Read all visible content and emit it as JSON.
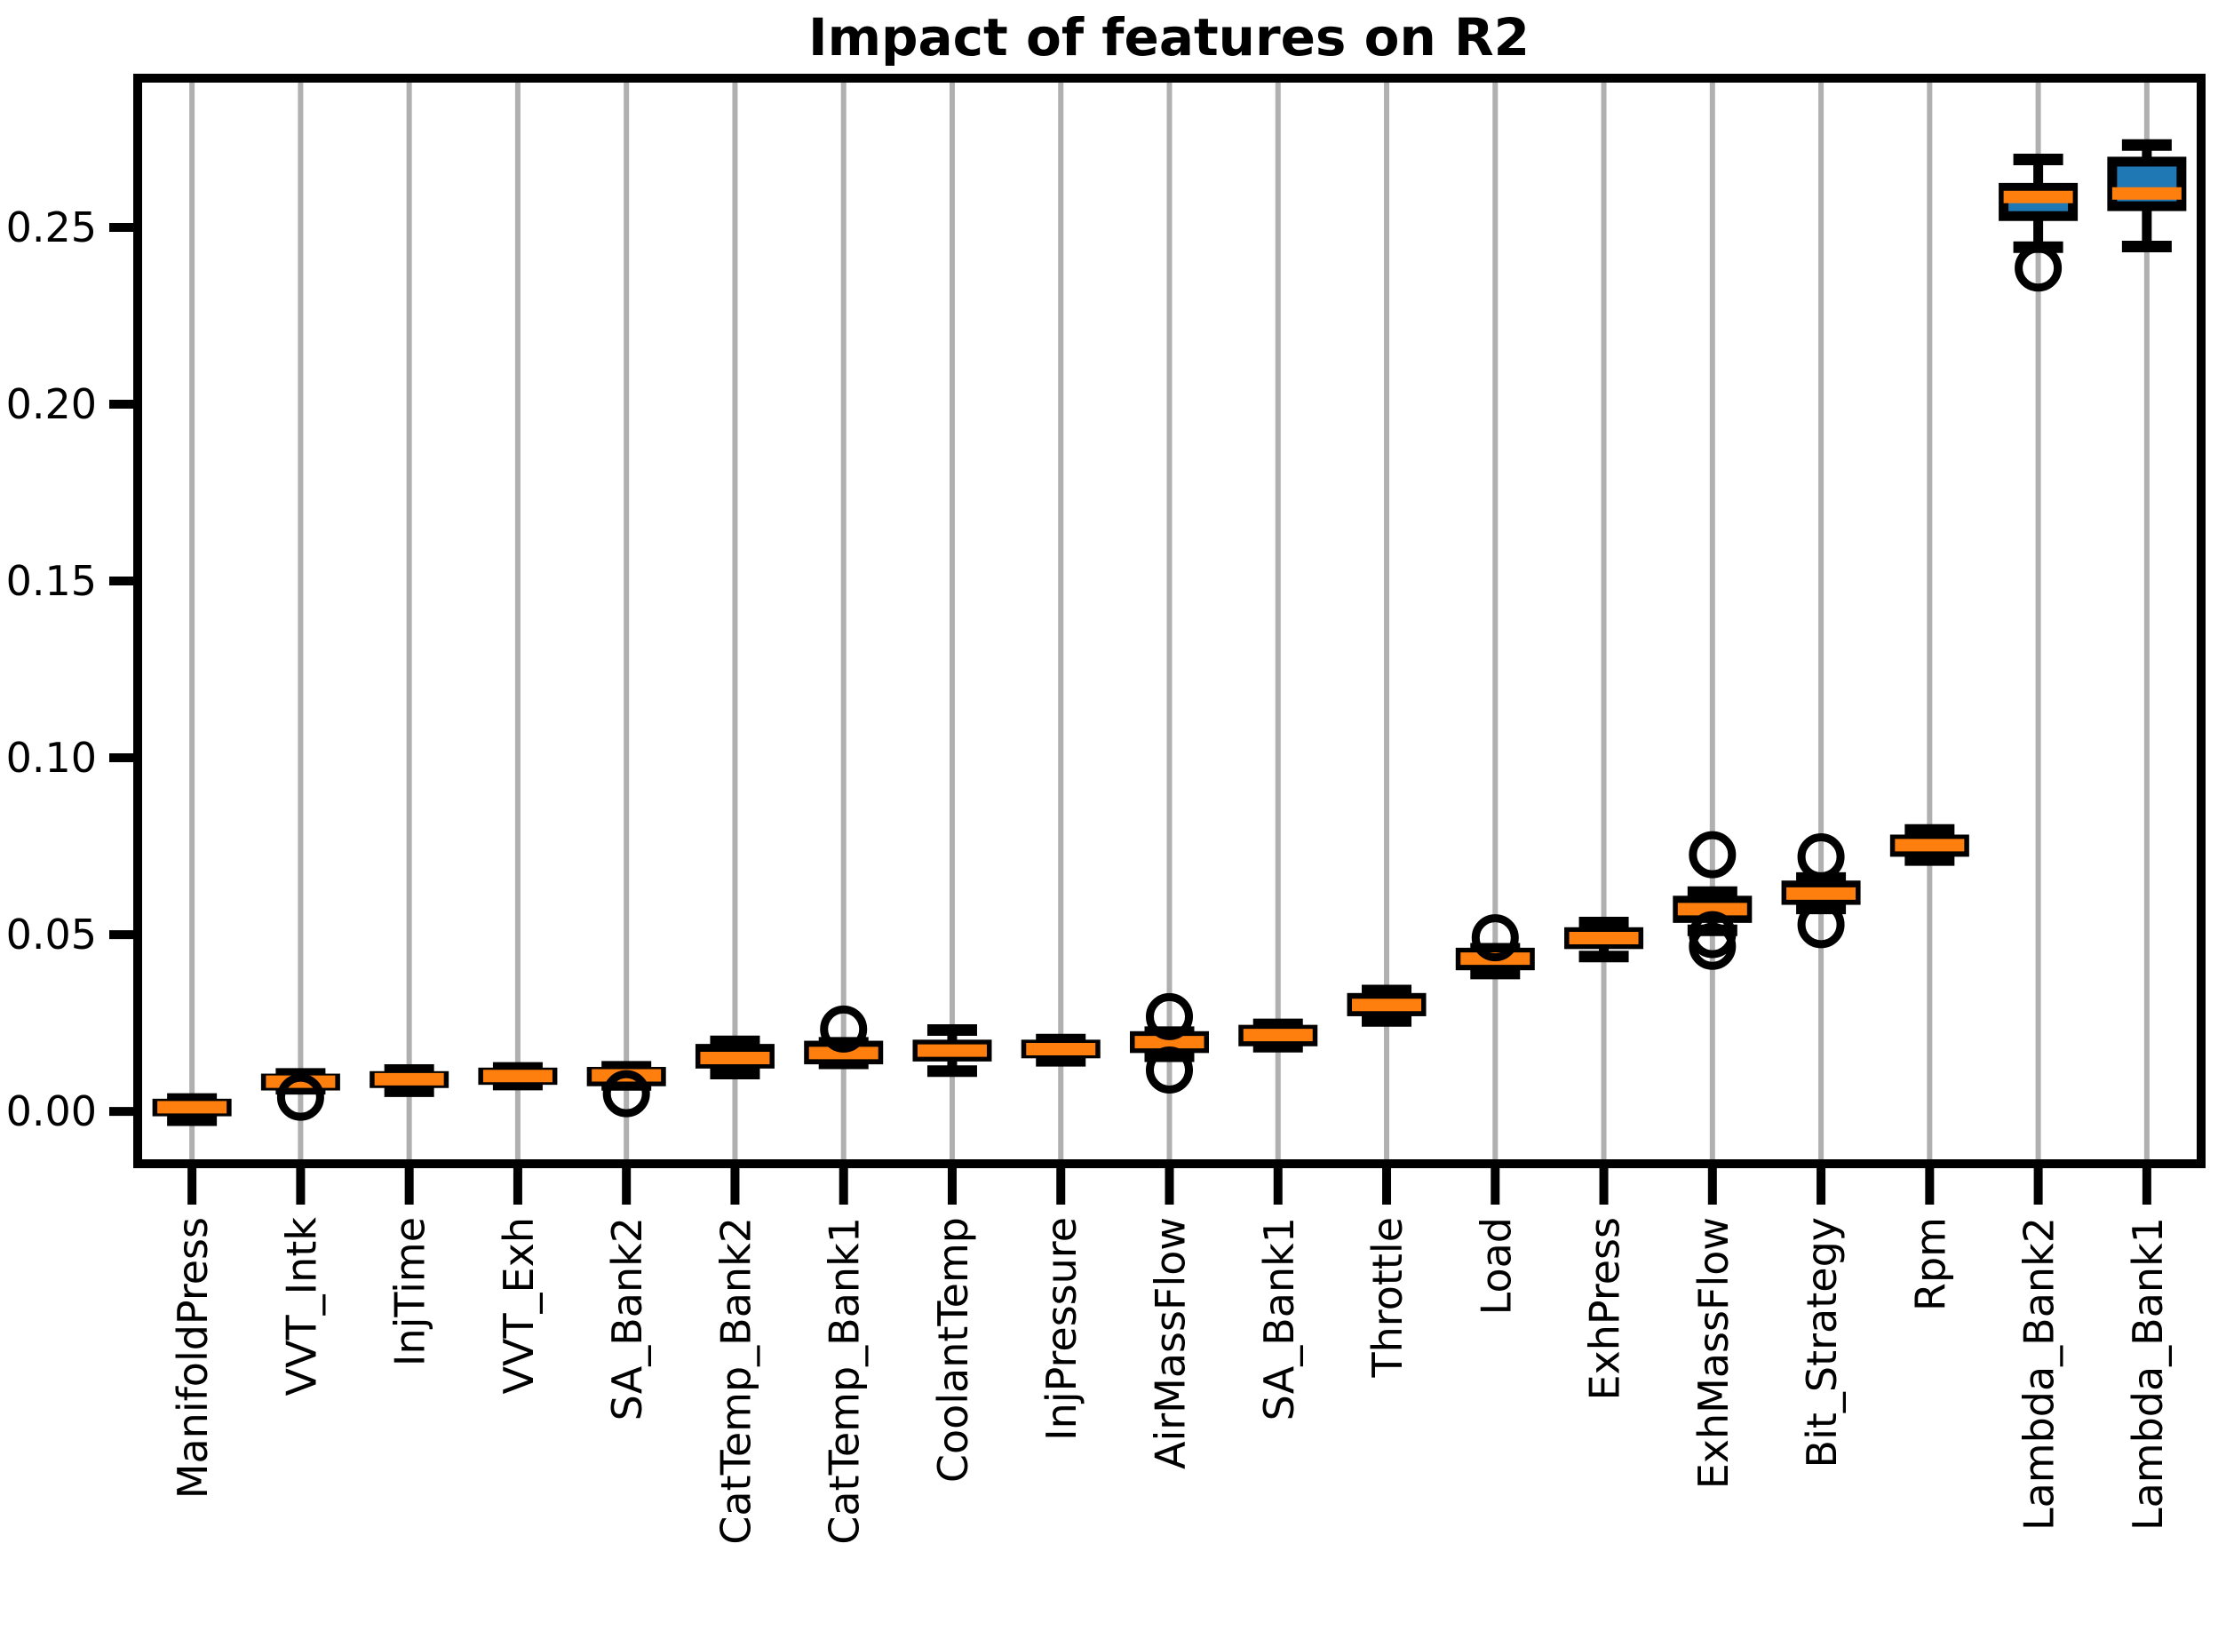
{
  "figure": {
    "background": "#ffffff"
  },
  "chart_data": {
    "type": "boxplot",
    "title": "Impact of features on R2",
    "xlabel": "",
    "ylabel": "",
    "orientation": "vertical",
    "grid": {
      "axis": "x",
      "color": "#b0b0b0",
      "horizontal_grid": false
    },
    "legend": {
      "visible": false
    },
    "colors": {
      "box_fill": "#1f77b4",
      "box_edge": "#000000",
      "median": "#ff7f0e",
      "whisker": "#000000",
      "flier_edge": "#000000",
      "grid": "#b0b0b0",
      "spine": "#000000"
    },
    "ylim": [
      -0.0148,
      0.2922
    ],
    "ytick_values": [
      0.0,
      0.05,
      0.1,
      0.15,
      0.2,
      0.25
    ],
    "ytick_labels": [
      "0.00",
      "0.05",
      "0.10",
      "0.15",
      "0.20",
      "0.25"
    ],
    "categories": [
      "ManifoldPress",
      "VVT_Intk",
      "InjTime",
      "VVT_Exh",
      "SA_Bank2",
      "CatTemp_Bank2",
      "CatTemp_Bank1",
      "CoolantTemp",
      "InjPressure",
      "AirMassFlow",
      "SA_Bank1",
      "Throttle",
      "Load",
      "ExhPress",
      "ExhMassFlow",
      "Bit_Strategy",
      "Rpm",
      "Lambda_Bank2",
      "Lambda_Bank1"
    ],
    "series": [
      {
        "name": "ManifoldPress",
        "whislo": -0.0025,
        "q1": 0.0,
        "med": 0.0012,
        "q3": 0.0022,
        "whishi": 0.0035,
        "fliers": []
      },
      {
        "name": "VVT_Intk",
        "whislo": 0.0064,
        "q1": 0.0073,
        "med": 0.0084,
        "q3": 0.0093,
        "whishi": 0.0106,
        "fliers": [
          0.004
        ]
      },
      {
        "name": "InjTime",
        "whislo": 0.0057,
        "q1": 0.008,
        "med": 0.0091,
        "q3": 0.01,
        "whishi": 0.0117,
        "fliers": []
      },
      {
        "name": "VVT_Exh",
        "whislo": 0.0076,
        "q1": 0.0089,
        "med": 0.01,
        "q3": 0.011,
        "whishi": 0.0123,
        "fliers": []
      },
      {
        "name": "SA_Bank2",
        "whislo": 0.0075,
        "q1": 0.0085,
        "med": 0.0102,
        "q3": 0.0112,
        "whishi": 0.0126,
        "fliers": [
          0.005
        ]
      },
      {
        "name": "CatTemp_Bank2",
        "whislo": 0.0107,
        "q1": 0.0135,
        "med": 0.0151,
        "q3": 0.0177,
        "whishi": 0.0198,
        "fliers": []
      },
      {
        "name": "CatTemp_Bank1",
        "whislo": 0.0136,
        "q1": 0.0147,
        "med": 0.0165,
        "q3": 0.0186,
        "whishi": 0.0194,
        "fliers": [
          0.0233
        ]
      },
      {
        "name": "CoolantTemp",
        "whislo": 0.0114,
        "q1": 0.0155,
        "med": 0.0172,
        "q3": 0.0189,
        "whishi": 0.023,
        "fliers": []
      },
      {
        "name": "InjPressure",
        "whislo": 0.0143,
        "q1": 0.0164,
        "med": 0.0176,
        "q3": 0.0189,
        "whishi": 0.0203,
        "fliers": []
      },
      {
        "name": "AirMassFlow",
        "whislo": 0.0156,
        "q1": 0.0179,
        "med": 0.0196,
        "q3": 0.0213,
        "whishi": 0.0224,
        "fliers": [
          0.0268,
          0.0117
        ]
      },
      {
        "name": "SA_Bank1",
        "whislo": 0.0183,
        "q1": 0.0198,
        "med": 0.0216,
        "q3": 0.0231,
        "whishi": 0.0246,
        "fliers": []
      },
      {
        "name": "Throttle",
        "whislo": 0.0256,
        "q1": 0.0283,
        "med": 0.0301,
        "q3": 0.0321,
        "whishi": 0.0342,
        "fliers": []
      },
      {
        "name": "Load",
        "whislo": 0.039,
        "q1": 0.0413,
        "med": 0.0432,
        "q3": 0.0449,
        "whishi": 0.046,
        "fliers": [
          0.0491
        ]
      },
      {
        "name": "ExhPress",
        "whislo": 0.0438,
        "q1": 0.0473,
        "med": 0.049,
        "q3": 0.0507,
        "whishi": 0.0534,
        "fliers": []
      },
      {
        "name": "ExhMassFlow",
        "whislo": 0.0512,
        "q1": 0.0547,
        "med": 0.0572,
        "q3": 0.0596,
        "whishi": 0.062,
        "fliers": [
          0.0726,
          0.05,
          0.0467
        ]
      },
      {
        "name": "Bit_Strategy",
        "whislo": 0.0574,
        "q1": 0.0598,
        "med": 0.0616,
        "q3": 0.0639,
        "whishi": 0.066,
        "fliers": [
          0.072,
          0.0528
        ]
      },
      {
        "name": "Rpm",
        "whislo": 0.0711,
        "q1": 0.0734,
        "med": 0.0753,
        "q3": 0.0769,
        "whishi": 0.0796,
        "fliers": []
      },
      {
        "name": "Lambda_Bank2",
        "whislo": 0.2444,
        "q1": 0.2532,
        "med": 0.2586,
        "q3": 0.2612,
        "whishi": 0.2692,
        "fliers": [
          0.2385
        ]
      },
      {
        "name": "Lambda_Bank1",
        "whislo": 0.2446,
        "q1": 0.256,
        "med": 0.2596,
        "q3": 0.2686,
        "whishi": 0.2733,
        "fliers": []
      }
    ]
  }
}
